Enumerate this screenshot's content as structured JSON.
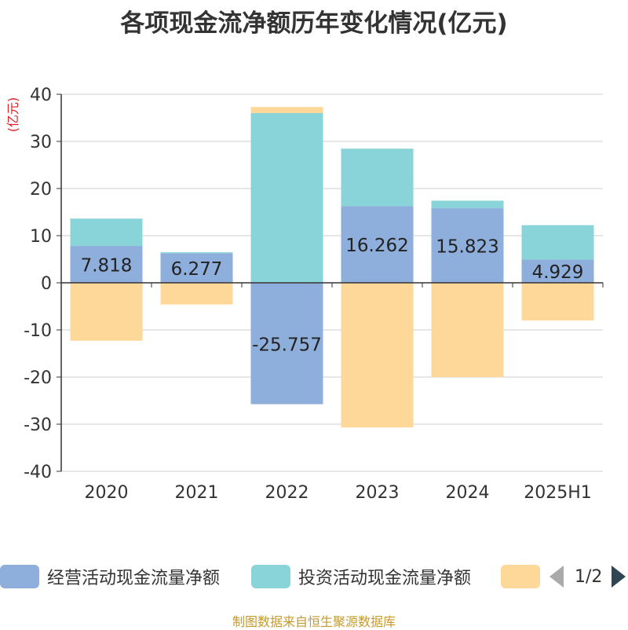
{
  "chart_data": {
    "type": "bar",
    "stacked": true,
    "title": "各项现金流净额历年变化情况(亿元)",
    "ylabel": "(亿元)",
    "categories": [
      "2020",
      "2021",
      "2022",
      "2023",
      "2024",
      "2025H1"
    ],
    "ylim": [
      -40,
      40
    ],
    "yticks": [
      40,
      30,
      20,
      10,
      0,
      -10,
      -20,
      -30,
      -40
    ],
    "grid": true,
    "legend_position": "bottom",
    "series": [
      {
        "name": "经营活动现金流量净额",
        "color": "#8eaedb",
        "values": [
          7.818,
          6.277,
          -25.757,
          16.262,
          15.823,
          4.929
        ],
        "labels": [
          "7.818",
          "6.277",
          "-25.757",
          "16.262",
          "15.823",
          "4.929"
        ]
      },
      {
        "name": "投资活动现金流量净额",
        "color": "#88d4d8",
        "values": [
          5.8,
          0.2,
          36.0,
          12.2,
          1.6,
          7.3
        ]
      },
      {
        "name": "",
        "color": "#fdd898",
        "values": [
          -12.3,
          -4.6,
          1.3,
          -30.7,
          -20.0,
          -8.0
        ]
      }
    ]
  },
  "legend": {
    "page": "1/2"
  },
  "footer": {
    "source": "制图数据来自恒生聚源数据库"
  }
}
